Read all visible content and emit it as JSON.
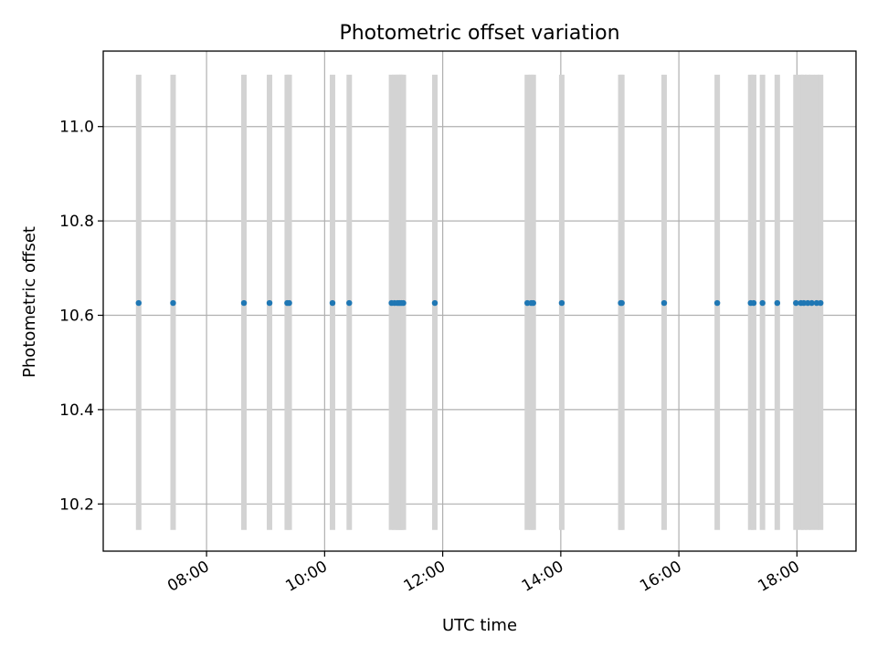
{
  "chart_data": {
    "type": "scatter",
    "title": "Photometric offset variation",
    "xlabel": "UTC time",
    "ylabel": "Photometric offset",
    "xlim": [
      "06:15",
      "19:00"
    ],
    "ylim": [
      10.1,
      11.16
    ],
    "xticks": [
      "08:00",
      "10:00",
      "12:00",
      "14:00",
      "16:00",
      "18:00"
    ],
    "yticks": [
      "10.2",
      "10.4",
      "10.6",
      "10.8",
      "11.0"
    ],
    "grid": true,
    "error_bar_color": "#d3d3d3",
    "point_color": "#1f77b4",
    "error_bar_range": [
      10.145,
      11.11
    ],
    "series": [
      {
        "x": [
          "06:51",
          "07:26",
          "08:38",
          "09:04",
          "09:22",
          "09:24",
          "10:08",
          "10:25",
          "11:08",
          "11:11",
          "11:14",
          "11:16",
          "11:18",
          "11:20",
          "11:52",
          "13:26",
          "13:30",
          "13:32",
          "14:01",
          "15:01",
          "15:02",
          "15:45",
          "16:39",
          "17:13",
          "17:16",
          "17:25",
          "17:40",
          "17:59",
          "18:04",
          "18:07",
          "18:11",
          "18:15",
          "18:20",
          "18:24"
        ],
        "y": [
          10.626,
          10.626,
          10.626,
          10.626,
          10.626,
          10.626,
          10.626,
          10.626,
          10.626,
          10.626,
          10.626,
          10.626,
          10.626,
          10.626,
          10.626,
          10.626,
          10.626,
          10.626,
          10.626,
          10.626,
          10.626,
          10.626,
          10.626,
          10.626,
          10.626,
          10.626,
          10.626,
          10.626,
          10.626,
          10.626,
          10.626,
          10.626,
          10.626,
          10.626
        ]
      }
    ]
  }
}
